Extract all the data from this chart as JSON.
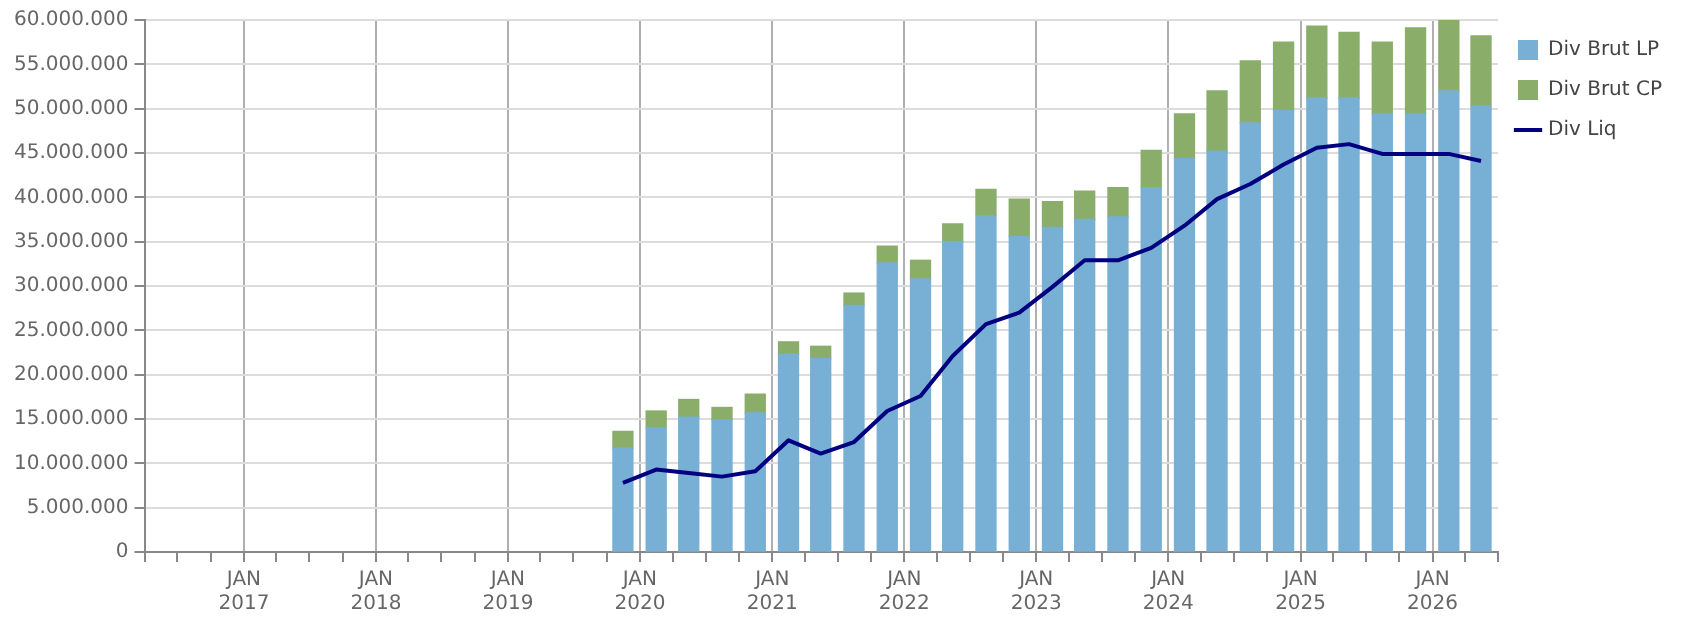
{
  "chart_data": {
    "type": "bar",
    "stacked": true,
    "x": [
      "2019-11-15",
      "2020-02-15",
      "2020-05-15",
      "2020-08-15",
      "2020-11-15",
      "2021-02-15",
      "2021-05-15",
      "2021-08-15",
      "2021-11-15",
      "2022-02-15",
      "2022-05-15",
      "2022-08-15",
      "2022-11-15",
      "2023-02-15",
      "2023-05-15",
      "2023-08-15",
      "2023-11-15",
      "2024-02-15",
      "2024-05-15",
      "2024-08-15",
      "2024-11-15",
      "2025-02-15",
      "2025-05-15",
      "2025-08-15",
      "2025-11-15",
      "2026-02-15",
      "2026-05-15"
    ],
    "series": [
      {
        "name": "Div Brut LP",
        "color": "#77b0d4",
        "values": [
          11700000,
          14000000,
          15200000,
          14900000,
          15700000,
          22300000,
          21800000,
          27800000,
          32600000,
          30800000,
          35000000,
          37900000,
          35600000,
          36600000,
          37500000,
          37800000,
          41100000,
          44400000,
          45200000,
          48400000,
          49800000,
          51200000,
          51200000,
          49400000,
          49400000,
          52000000,
          50300000
        ]
      },
      {
        "name": "Div Brut CP",
        "color": "#8aad6a",
        "values": [
          1900000,
          1900000,
          2000000,
          1400000,
          2100000,
          1400000,
          1400000,
          1400000,
          1900000,
          2100000,
          2000000,
          3000000,
          4200000,
          2900000,
          3200000,
          3300000,
          4200000,
          5000000,
          6800000,
          7000000,
          7700000,
          8100000,
          7400000,
          8100000,
          9700000,
          8000000,
          7900000
        ]
      },
      {
        "name": "Div Liq",
        "type": "line",
        "color": "#000080",
        "values": [
          7800000,
          9300000,
          8900000,
          8500000,
          9100000,
          12600000,
          11100000,
          12400000,
          15900000,
          17600000,
          22100000,
          25700000,
          27000000,
          29900000,
          32900000,
          32900000,
          34300000,
          36800000,
          39800000,
          41500000,
          43700000,
          45600000,
          46000000,
          44900000,
          44900000,
          44900000,
          44100000
        ]
      }
    ],
    "xlim": [
      "2016-04-01",
      "2026-07-01"
    ],
    "xticks": [
      {
        "value": "2016-04-01",
        "label": null
      },
      {
        "value": "2016-07-01",
        "label": null
      },
      {
        "value": "2016-10-01",
        "label": null
      },
      {
        "value": "2017-01-01",
        "label": "JAN 2017"
      },
      {
        "value": "2017-04-01",
        "label": null
      },
      {
        "value": "2017-07-01",
        "label": null
      },
      {
        "value": "2017-10-01",
        "label": null
      },
      {
        "value": "2018-01-01",
        "label": "JAN 2018"
      },
      {
        "value": "2018-04-01",
        "label": null
      },
      {
        "value": "2018-07-01",
        "label": null
      },
      {
        "value": "2018-10-01",
        "label": null
      },
      {
        "value": "2019-01-01",
        "label": "JAN 2019"
      },
      {
        "value": "2019-04-01",
        "label": null
      },
      {
        "value": "2019-07-01",
        "label": null
      },
      {
        "value": "2019-10-01",
        "label": null
      },
      {
        "value": "2020-01-01",
        "label": "JAN 2020"
      },
      {
        "value": "2020-04-01",
        "label": null
      },
      {
        "value": "2020-07-01",
        "label": null
      },
      {
        "value": "2020-10-01",
        "label": null
      },
      {
        "value": "2021-01-01",
        "label": "JAN 2021"
      },
      {
        "value": "2021-04-01",
        "label": null
      },
      {
        "value": "2021-07-01",
        "label": null
      },
      {
        "value": "2021-10-01",
        "label": null
      },
      {
        "value": "2022-01-01",
        "label": "JAN 2022"
      },
      {
        "value": "2022-04-01",
        "label": null
      },
      {
        "value": "2022-07-01",
        "label": null
      },
      {
        "value": "2022-10-01",
        "label": null
      },
      {
        "value": "2023-01-01",
        "label": "JAN 2023"
      },
      {
        "value": "2023-04-01",
        "label": null
      },
      {
        "value": "2023-07-01",
        "label": null
      },
      {
        "value": "2023-10-01",
        "label": null
      },
      {
        "value": "2024-01-01",
        "label": "JAN 2024"
      },
      {
        "value": "2024-04-01",
        "label": null
      },
      {
        "value": "2024-07-01",
        "label": null
      },
      {
        "value": "2024-10-01",
        "label": null
      },
      {
        "value": "2025-01-01",
        "label": "JAN 2025"
      },
      {
        "value": "2025-04-01",
        "label": null
      },
      {
        "value": "2025-07-01",
        "label": null
      },
      {
        "value": "2025-10-01",
        "label": null
      },
      {
        "value": "2026-01-01",
        "label": "JAN 2026"
      },
      {
        "value": "2026-04-01",
        "label": null
      },
      {
        "value": "2026-07-01",
        "label": null
      }
    ],
    "ylim": [
      0,
      60000000
    ],
    "yticks": [
      {
        "value": 0,
        "label": "0"
      },
      {
        "value": 5000000,
        "label": "5.000.000"
      },
      {
        "value": 10000000,
        "label": "10.000.000"
      },
      {
        "value": 15000000,
        "label": "15.000.000"
      },
      {
        "value": 20000000,
        "label": "20.000.000"
      },
      {
        "value": 25000000,
        "label": "25.000.000"
      },
      {
        "value": 30000000,
        "label": "30.000.000"
      },
      {
        "value": 35000000,
        "label": "35.000.000"
      },
      {
        "value": 40000000,
        "label": "40.000.000"
      },
      {
        "value": 45000000,
        "label": "45.000.000"
      },
      {
        "value": 50000000,
        "label": "50.000.000"
      },
      {
        "value": 55000000,
        "label": "55.000.000"
      },
      {
        "value": 60000000,
        "label": "60.000.000"
      }
    ],
    "grid": true,
    "legend": "top right",
    "marker": "none",
    "line_style": "solid"
  }
}
